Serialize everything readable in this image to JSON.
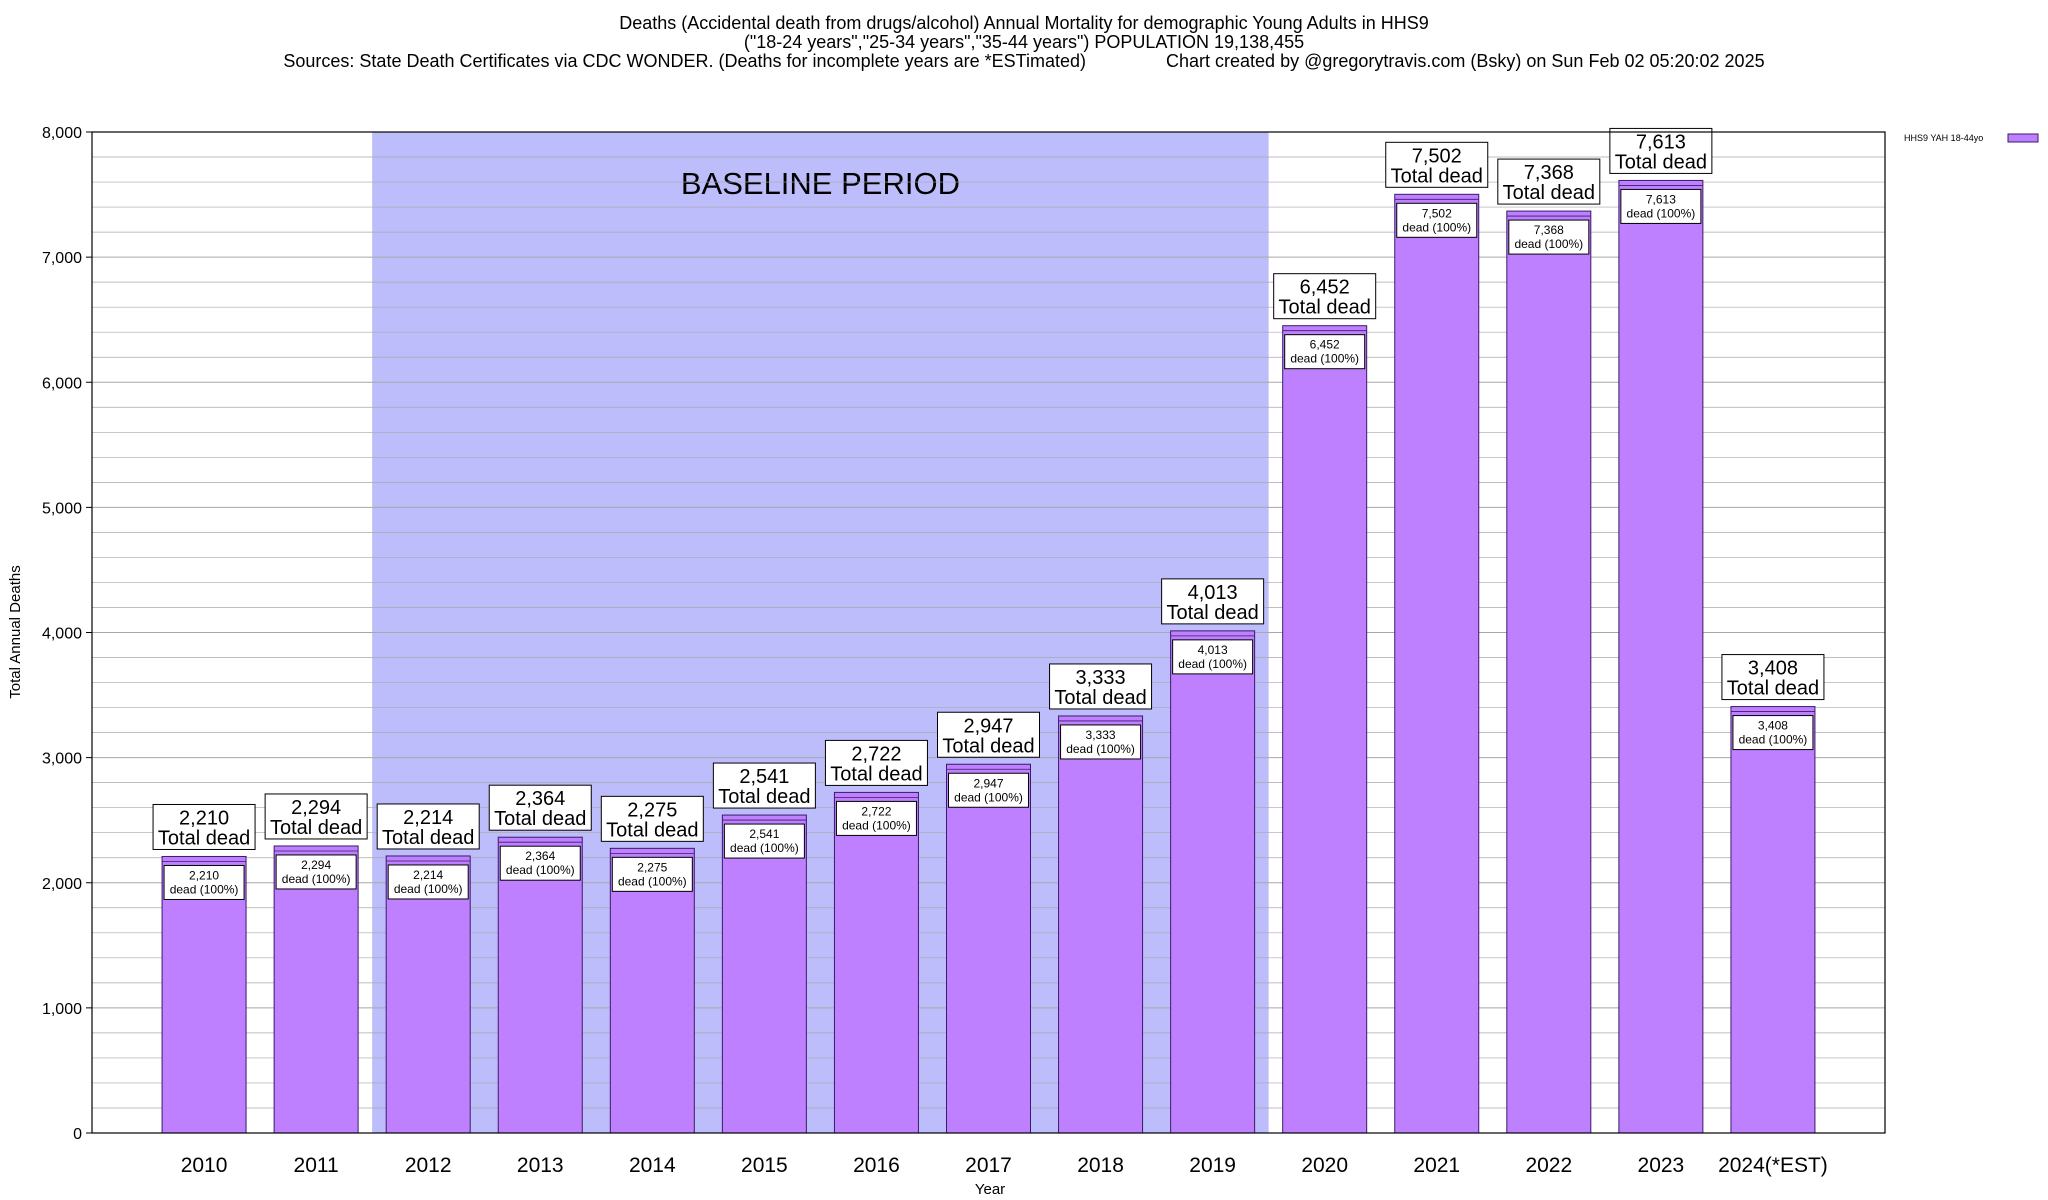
{
  "chart_data": {
    "type": "bar",
    "title_lines": [
      "Deaths (Accidental death from drugs/alcohol) Annual Mortality for demographic Young Adults in HHS9",
      "(\"18-24 years\",\"25-34 years\",\"35-44 years\") POPULATION 19,138,455",
      "Sources: State Death Certificates via CDC WONDER. (Deaths for incomplete years are *ESTimated)                Chart created by @gregorytravis.com (Bsky) on Sun Feb 02 05:20:02 2025"
    ],
    "xlabel": "Year",
    "ylabel": "Total Annual Deaths",
    "ylim": [
      0,
      8000
    ],
    "yticks": [
      0,
      1000,
      2000,
      3000,
      4000,
      5000,
      6000,
      7000,
      8000
    ],
    "ytick_labels": [
      "0",
      "1,000",
      "2,000",
      "3,000",
      "4,000",
      "5,000",
      "6,000",
      "7,000",
      "8,000"
    ],
    "minor_grid_step": 200,
    "grid": true,
    "legend": {
      "position": "top-right",
      "label": "HHS9 YAH 18-44yo"
    },
    "categories": [
      "2010",
      "2011",
      "2012",
      "2013",
      "2014",
      "2015",
      "2016",
      "2017",
      "2018",
      "2019",
      "2020",
      "2021",
      "2022",
      "2023",
      "2024(*EST)"
    ],
    "series": [
      {
        "name": "HHS9 YAH 18-44yo",
        "values": [
          2210,
          2294,
          2214,
          2364,
          2275,
          2541,
          2722,
          2947,
          3333,
          4013,
          6452,
          7502,
          7368,
          7613,
          3408
        ]
      }
    ],
    "value_labels": [
      "2,210",
      "2,294",
      "2,214",
      "2,364",
      "2,275",
      "2,541",
      "2,722",
      "2,947",
      "3,333",
      "4,013",
      "6,452",
      "7,502",
      "7,368",
      "7,613",
      "3,408"
    ],
    "total_label_suffix": "Total dead",
    "inner_label_suffix": "dead (100%)",
    "baseline_period": {
      "label": "BASELINE PERIOD",
      "from": "2012",
      "to": "2019"
    },
    "colors": {
      "bar_fill": "#bf80ff",
      "bar_stroke": "#3a1a6a",
      "baseline_fill": "#bdbdfb",
      "grid": "#a8a8a8"
    }
  }
}
